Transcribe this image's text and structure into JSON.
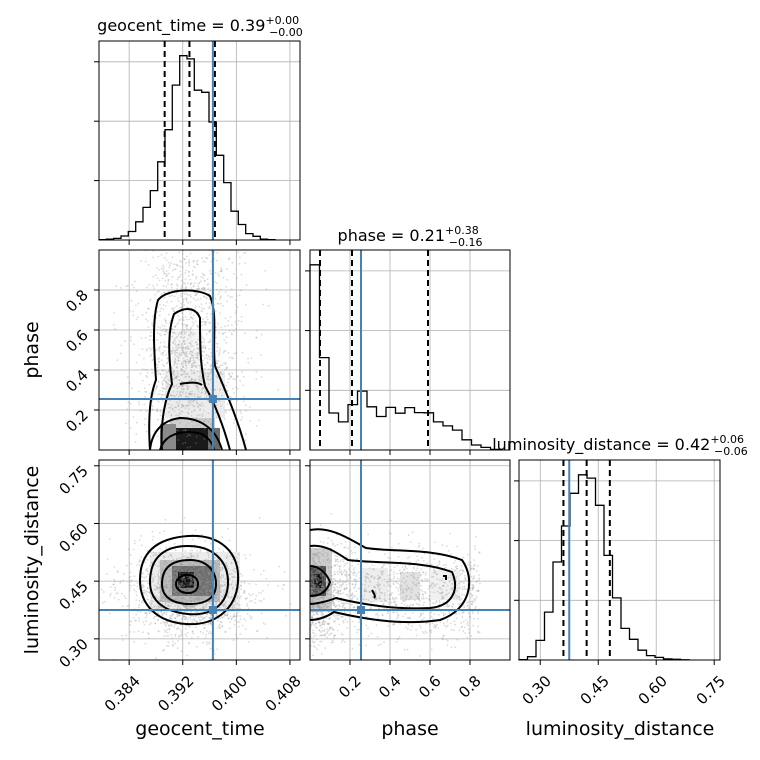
{
  "chart_data": {
    "type": "corner",
    "parameters": [
      "geocent_time",
      "phase",
      "luminosity_distance"
    ],
    "truth": {
      "geocent_time": 0.3965,
      "phase": 0.255,
      "luminosity_distance": 0.375
    },
    "ranges": {
      "geocent_time": [
        0.3795,
        0.4095
      ],
      "phase": [
        0.0,
        1.0
      ],
      "luminosity_distance": [
        0.245,
        0.765
      ]
    },
    "ticks": {
      "geocent_time": {
        "values": [
          0.384,
          0.392,
          0.4,
          0.408
        ],
        "labels": [
          "0.384",
          "0.392",
          "0.400",
          "0.408"
        ]
      },
      "phase_x": {
        "values": [
          0.2,
          0.4,
          0.6,
          0.8
        ],
        "labels": [
          "0.2",
          "0.4",
          "0.6",
          "0.8"
        ]
      },
      "phase_y": {
        "values": [
          0.2,
          0.4,
          0.6,
          0.8
        ],
        "labels": [
          "0.2",
          "0.4",
          "0.6",
          "0.8"
        ]
      },
      "luminosity_distance_x": {
        "values": [
          0.3,
          0.45,
          0.6,
          0.75
        ],
        "labels": [
          "0.30",
          "0.45",
          "0.60",
          "0.75"
        ]
      },
      "luminosity_distance_y": {
        "values": [
          0.3,
          0.45,
          0.6,
          0.75
        ],
        "labels": [
          "0.30",
          "0.45",
          "0.60",
          "0.75"
        ]
      }
    },
    "marginal_titles": [
      {
        "param": "geocent_time",
        "text": "geocent_time = 0.39",
        "sup": "+0.00",
        "sub": "−0.00"
      },
      {
        "param": "phase",
        "text": "phase = 0.21",
        "sup": "+0.38",
        "sub": "−0.16"
      },
      {
        "param": "luminosity_distance",
        "text": "luminosity_distance = 0.42",
        "sup": "+0.06",
        "sub": "−0.06"
      }
    ],
    "quantiles": {
      "geocent_time": [
        0.3893,
        0.393,
        0.3968
      ],
      "phase": [
        0.05,
        0.21,
        0.59
      ],
      "luminosity_distance": [
        0.36,
        0.42,
        0.48
      ]
    },
    "histograms": {
      "geocent_time": [
        0.1,
        0.3,
        0.6,
        1.5,
        3.2,
        6.8,
        12.2,
        18.5,
        29.3,
        41.3,
        58.0,
        69.0,
        67.8,
        56.1,
        55.3,
        44.2,
        31.7,
        21.5,
        10.8,
        5.8,
        2.4,
        1.4,
        0.3,
        0.1
      ],
      "phase": [
        93.0,
        46.4,
        18.6,
        14.1,
        22.8,
        29.6,
        21.7,
        16.8,
        21.4,
        18.5,
        21.3,
        18.8,
        18.7,
        14.1,
        12.1,
        10.0,
        5.1,
        2.5,
        1.3,
        0.3
      ],
      "luminosity_distance": [
        0.2,
        1.5,
        9.0,
        22.0,
        45.0,
        61.5,
        76.5,
        85.0,
        83.5,
        71.0,
        48.0,
        28.5,
        14.5,
        9.5,
        4.5,
        2.0,
        1.2,
        0.5,
        0.3,
        0.1
      ]
    },
    "xlabels": [
      "geocent_time",
      "phase",
      "luminosity_distance"
    ],
    "ylabels": [
      "phase",
      "luminosity_distance"
    ],
    "colors": {
      "truth": "#4682b4",
      "contour": "#000000",
      "grid": "#b0b0b0",
      "sample": "#999999"
    },
    "grid": true
  }
}
